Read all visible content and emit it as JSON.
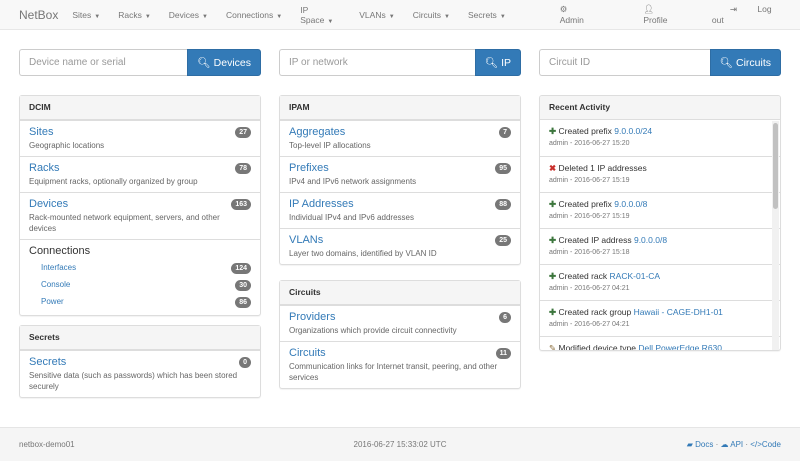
{
  "navbar": {
    "brand": "NetBox",
    "menus": [
      "Sites",
      "Racks",
      "Devices",
      "Connections",
      "IP Space",
      "VLANs",
      "Circuits",
      "Secrets"
    ],
    "admin": "Admin",
    "profile": "Profile",
    "logout": "Log out"
  },
  "search": {
    "device": {
      "placeholder": "Device name or serial",
      "button": "Devices"
    },
    "ip": {
      "placeholder": "IP or network",
      "button": "IP"
    },
    "circuit": {
      "placeholder": "Circuit ID",
      "button": "Circuits"
    }
  },
  "dcim": {
    "title": "DCIM",
    "items": [
      {
        "label": "Sites",
        "desc": "Geographic locations",
        "count": "27"
      },
      {
        "label": "Racks",
        "desc": "Equipment racks, optionally organized by group",
        "count": "78"
      },
      {
        "label": "Devices",
        "desc": "Rack-mounted network equipment, servers, and other devices",
        "count": "163"
      }
    ],
    "connections": {
      "label": "Connections",
      "items": [
        {
          "label": "Interfaces",
          "count": "124"
        },
        {
          "label": "Console",
          "count": "30"
        },
        {
          "label": "Power",
          "count": "86"
        }
      ]
    }
  },
  "secrets": {
    "title": "Secrets",
    "items": [
      {
        "label": "Secrets",
        "desc": "Sensitive data (such as passwords) which has been stored securely",
        "count": "0"
      }
    ]
  },
  "ipam": {
    "title": "IPAM",
    "items": [
      {
        "label": "Aggregates",
        "desc": "Top-level IP allocations",
        "count": "7"
      },
      {
        "label": "Prefixes",
        "desc": "IPv4 and IPv6 network assignments",
        "count": "95"
      },
      {
        "label": "IP Addresses",
        "desc": "Individual IPv4 and IPv6 addresses",
        "count": "88"
      },
      {
        "label": "VLANs",
        "desc": "Layer two domains, identified by VLAN ID",
        "count": "25"
      }
    ]
  },
  "circuits": {
    "title": "Circuits",
    "items": [
      {
        "label": "Providers",
        "desc": "Organizations which provide circuit connectivity",
        "count": "6"
      },
      {
        "label": "Circuits",
        "desc": "Communication links for Internet transit, peering, and other services",
        "count": "11"
      }
    ]
  },
  "activity": {
    "title": "Recent Activity",
    "items": [
      {
        "icon": "plus",
        "action": "Created prefix",
        "object": "9.0.0.0/24",
        "meta": "admin - 2016-06-27 15:20"
      },
      {
        "icon": "remove",
        "action": "Deleted 1 IP addresses",
        "object": "",
        "meta": "admin - 2016-06-27 15:19"
      },
      {
        "icon": "plus",
        "action": "Created prefix",
        "object": "9.0.0.0/8",
        "meta": "admin - 2016-06-27 15:19"
      },
      {
        "icon": "plus",
        "action": "Created IP address",
        "object": "9.0.0.0/8",
        "meta": "admin - 2016-06-27 15:18"
      },
      {
        "icon": "plus",
        "action": "Created rack",
        "object": "RACK-01-CA",
        "meta": "admin - 2016-06-27 04:21"
      },
      {
        "icon": "plus",
        "action": "Created rack group",
        "object": "Hawaii - CAGE-DH1-01",
        "meta": "admin - 2016-06-27 04:21"
      },
      {
        "icon": "pencil",
        "action": "Modified device type",
        "object": "Dell PowerEdge R630",
        "meta": ""
      }
    ]
  },
  "footer": {
    "hostname": "netbox-demo01",
    "time": "2016-06-27 15:33:02 UTC",
    "docs": "Docs",
    "api": "API",
    "code": "Code",
    "sep": "·"
  },
  "colors": {
    "link": "#337ab7",
    "button": "#337ab7",
    "badge": "#777777",
    "plus": "#3c763d",
    "remove": "#c9302c"
  }
}
